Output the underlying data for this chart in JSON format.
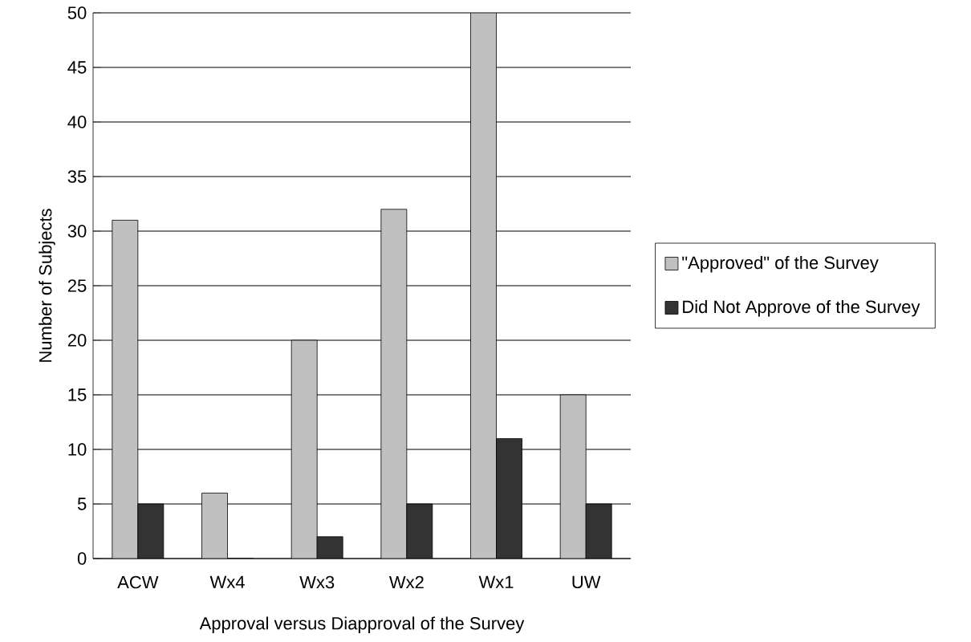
{
  "chart_data": {
    "type": "bar",
    "xlabel": "Approval versus Diapproval of the Survey",
    "ylabel": "Number of Subjects",
    "categories": [
      "ACW",
      "Wx4",
      "Wx3",
      "Wx2",
      "Wx1",
      "UW"
    ],
    "series": [
      {
        "name": "\"Approved\" of the Survey",
        "color": "#c0c0c0",
        "values": [
          31,
          6,
          20,
          32,
          50,
          15
        ]
      },
      {
        "name": "Did Not Approve of the Survey",
        "color": "#333333",
        "values": [
          5,
          0,
          2,
          5,
          11,
          5
        ]
      }
    ],
    "ylim": [
      0,
      50
    ],
    "yticks": [
      0,
      5,
      10,
      15,
      20,
      25,
      30,
      35,
      40,
      45,
      50
    ],
    "grid": "y",
    "legend": "right"
  }
}
